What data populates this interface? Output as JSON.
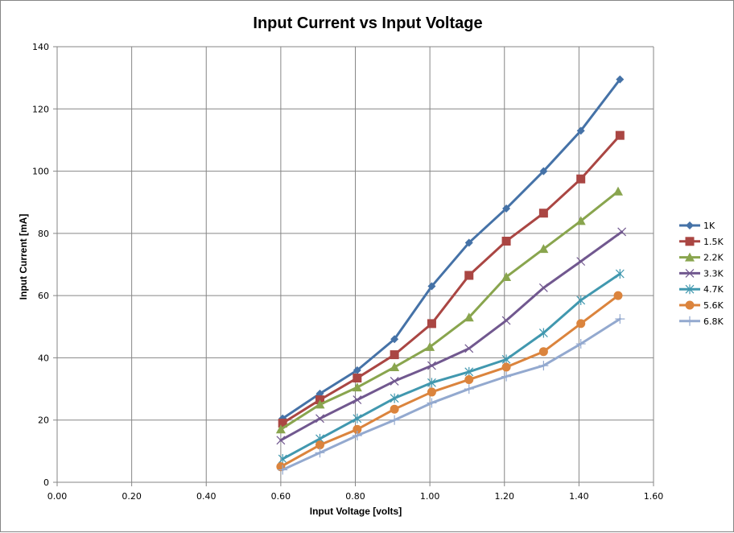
{
  "chart_data": {
    "type": "line",
    "title": "Input Current vs Input Voltage",
    "xlabel": "Input Voltage [volts]",
    "ylabel": "Input Current [mA]",
    "xlim": [
      0,
      1.6
    ],
    "ylim": [
      0,
      140
    ],
    "x_ticks": [
      "0.00",
      "0.20",
      "0.40",
      "0.60",
      "0.80",
      "1.00",
      "1.20",
      "1.40",
      "1.60"
    ],
    "y_ticks": [
      "0",
      "20",
      "40",
      "60",
      "80",
      "100",
      "120",
      "140"
    ],
    "grid": true,
    "legend_position": "right",
    "series": [
      {
        "name": "1K",
        "color": "#4572A7",
        "marker": "diamond",
        "x": [
          0.605,
          0.705,
          0.805,
          0.905,
          1.005,
          1.105,
          1.205,
          1.305,
          1.405,
          1.51
        ],
        "values": [
          20.5,
          28.5,
          36,
          46,
          63,
          77,
          88,
          100,
          113,
          129.5
        ]
      },
      {
        "name": "1.5K",
        "color": "#AA4643",
        "marker": "square",
        "x": [
          0.605,
          0.705,
          0.805,
          0.905,
          1.005,
          1.105,
          1.205,
          1.305,
          1.405,
          1.51
        ],
        "values": [
          19,
          26.5,
          33.5,
          41,
          51,
          66.5,
          77.5,
          86.5,
          97.5,
          111.5
        ]
      },
      {
        "name": "2.2K",
        "color": "#89A54E",
        "marker": "triangle",
        "x": [
          0.6,
          0.705,
          0.805,
          0.905,
          1.0,
          1.105,
          1.205,
          1.305,
          1.405,
          1.505
        ],
        "values": [
          17,
          25,
          30.5,
          37,
          43.5,
          53,
          66,
          75,
          84,
          93.5
        ]
      },
      {
        "name": "3.3K",
        "color": "#71588F",
        "marker": "x",
        "x": [
          0.6,
          0.705,
          0.805,
          0.905,
          1.005,
          1.105,
          1.205,
          1.305,
          1.405,
          1.515
        ],
        "values": [
          13.5,
          20.5,
          26.5,
          32.5,
          37.5,
          43,
          52,
          62.5,
          71,
          80.5
        ]
      },
      {
        "name": "4.7K",
        "color": "#4198AF",
        "marker": "star",
        "x": [
          0.605,
          0.705,
          0.805,
          0.905,
          1.005,
          1.105,
          1.205,
          1.305,
          1.405,
          1.51
        ],
        "values": [
          7.5,
          14,
          20.5,
          27,
          32,
          35.5,
          39.5,
          48,
          58.5,
          67
        ]
      },
      {
        "name": "5.6K",
        "color": "#DB843D",
        "marker": "circle",
        "x": [
          0.6,
          0.705,
          0.805,
          0.905,
          1.005,
          1.105,
          1.205,
          1.305,
          1.405,
          1.505
        ],
        "values": [
          5,
          12,
          17,
          23.5,
          29,
          33,
          37,
          42,
          51,
          60
        ]
      },
      {
        "name": "6.8K",
        "color": "#93A9CF",
        "marker": "plus",
        "x": [
          0.605,
          0.705,
          0.805,
          0.905,
          1.005,
          1.105,
          1.205,
          1.305,
          1.405,
          1.51
        ],
        "values": [
          4,
          9.5,
          15,
          20,
          25.5,
          30,
          34,
          37.5,
          44.5,
          52.5
        ]
      }
    ]
  }
}
